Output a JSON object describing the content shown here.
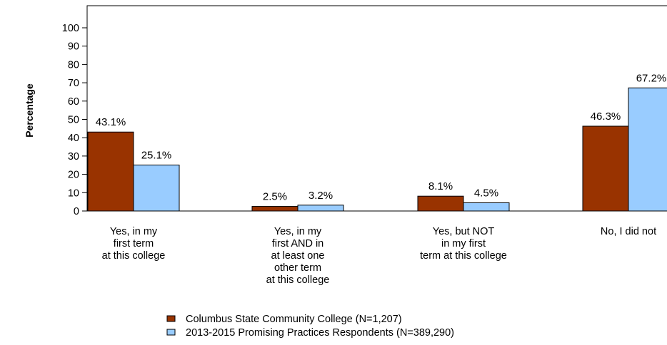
{
  "chart_data": {
    "type": "bar",
    "title": "",
    "xlabel": "",
    "ylabel": "Percentage",
    "ylim": [
      0,
      100
    ],
    "yticks": [
      0,
      10,
      20,
      30,
      40,
      50,
      60,
      70,
      80,
      90,
      100
    ],
    "grid": false,
    "legend_position": "bottom",
    "categories": [
      "Yes, in my first term at this college",
      "Yes, in my first AND in at least one other term at this college",
      "Yes, but NOT in my first term at this college",
      "No, I did not"
    ],
    "category_lines": [
      [
        "Yes, in my",
        "first term",
        "at this college"
      ],
      [
        "Yes, in my",
        "first AND in",
        "at least one",
        "other term",
        "at this college"
      ],
      [
        "Yes, but NOT",
        "in my first",
        "term at this college"
      ],
      [
        "No, I did not"
      ]
    ],
    "series": [
      {
        "name": "Columbus State Community College (N=1,207)",
        "color": "#993300",
        "values": [
          43.1,
          2.5,
          8.1,
          46.3
        ],
        "labels": [
          "43.1%",
          "2.5%",
          "8.1%",
          "46.3%"
        ]
      },
      {
        "name": "2013-2015 Promising Practices Respondents (N=389,290)",
        "color": "#99ccff",
        "values": [
          25.1,
          3.2,
          4.5,
          67.2
        ],
        "labels": [
          "25.1%",
          "3.2%",
          "4.5%",
          "67.2%"
        ]
      }
    ]
  }
}
